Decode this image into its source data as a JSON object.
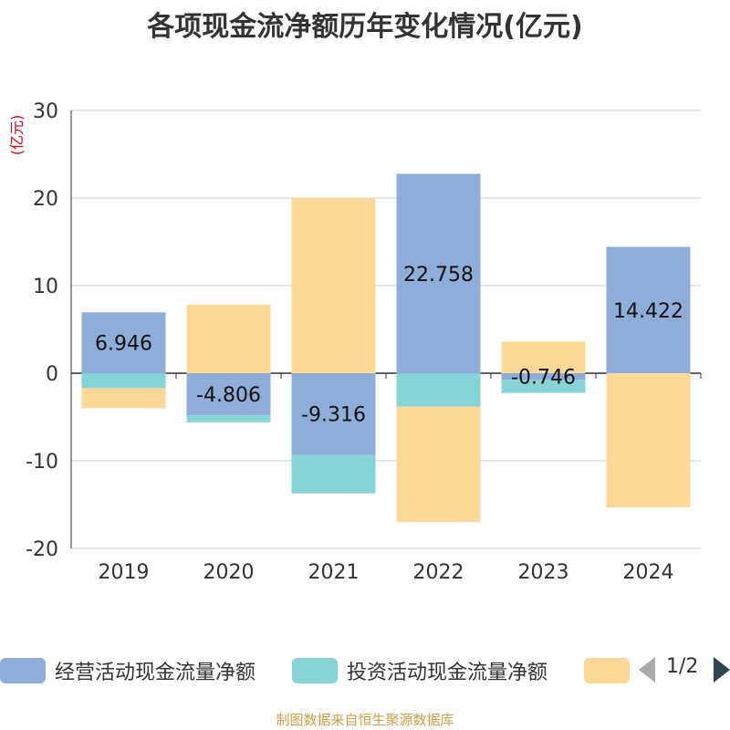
{
  "chart_data": {
    "type": "bar",
    "stacked": true,
    "title": "各项现金流净额历年变化情况(亿元)",
    "ylabel": "(亿元)",
    "ylim": [
      -20,
      30
    ],
    "yticks": [
      30,
      20,
      10,
      0,
      -10,
      -20
    ],
    "categories": [
      "2019",
      "2020",
      "2021",
      "2022",
      "2023",
      "2024"
    ],
    "series": [
      {
        "name": "经营活动现金流量净额",
        "color": "#8eadd8",
        "values": [
          6.946,
          -4.806,
          -9.316,
          22.758,
          -0.746,
          14.422
        ],
        "labels": [
          "6.946",
          "-4.806",
          "-9.316",
          "22.758",
          "-0.746",
          "14.422"
        ]
      },
      {
        "name": "投资活动现金流量净额",
        "color": "#86d4d6",
        "values": [
          -1.7,
          -0.8,
          -4.4,
          -3.8,
          -1.5,
          0
        ],
        "labels": null
      },
      {
        "name": "",
        "color": "#fed897",
        "values": [
          -2.3,
          7.8,
          20.0,
          -13.2,
          3.6,
          -15.3
        ],
        "labels": null
      }
    ],
    "legend_position": "bottom"
  },
  "legend": {
    "items": [
      {
        "label": "经营活动现金流量净额",
        "color": "#8eadd8"
      },
      {
        "label": "投资活动现金流量净额",
        "color": "#86d4d6"
      },
      {
        "label": "",
        "color": "#fed897"
      }
    ],
    "page_indicator": "1/2"
  },
  "source": "制图数据来自恒生聚源数据库"
}
